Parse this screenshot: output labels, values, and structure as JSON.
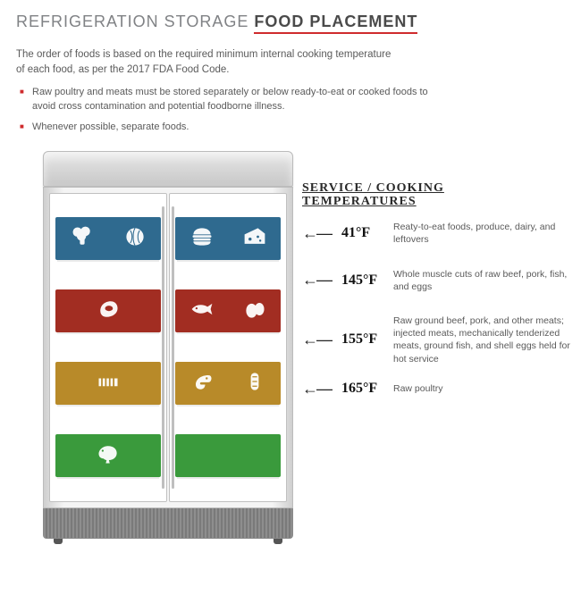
{
  "title_prefix": "REFRIGERATION STORAGE ",
  "title_bold": "FOOD PLACEMENT",
  "intro": "The order of foods is based on the required minimum internal cooking temperature of each food, as per the 2017 FDA Food Code.",
  "bullets": [
    "Raw poultry and meats must be stored separately or below ready-to-eat or cooked foods to avoid cross contamination and potential foodborne illness.",
    "Whenever possible, separate foods."
  ],
  "service_heading_line1": "SERVICE / COOKING",
  "service_heading_line2": "TEMPERATURES",
  "shelves": [
    {
      "color": "#2f6a8f",
      "temp": "41°F",
      "desc": "Reaty-to-eat foods, produce, dairy, and leftovers",
      "icons_left": [
        "broccoli",
        "cabbage"
      ],
      "icons_right": [
        "burger",
        "cheese"
      ]
    },
    {
      "color": "#a22d22",
      "temp": "145°F",
      "desc": "Whole muscle cuts of raw beef, pork, fish, and eggs",
      "icons_left": [
        "steak"
      ],
      "icons_right": [
        "fish",
        "eggs"
      ]
    },
    {
      "color": "#b88a29",
      "temp": "155°F",
      "desc": "Raw ground beef, pork, and other meats; injected meats, mechanically tenderized meats, ground fish, and shell eggs held for hot service",
      "icons_left": [
        "ribs"
      ],
      "icons_right": [
        "shrimp",
        "sausage"
      ]
    },
    {
      "color": "#3a9a3c",
      "temp": "165°F",
      "desc": "Raw poultry",
      "icons_left": [
        "poultry"
      ],
      "icons_right": []
    }
  ],
  "arrow_glyph": "←—",
  "colors": {
    "accent": "#cf2b2d",
    "text": "#5a5a5a",
    "fridge_metal": "#cfcfcf"
  }
}
